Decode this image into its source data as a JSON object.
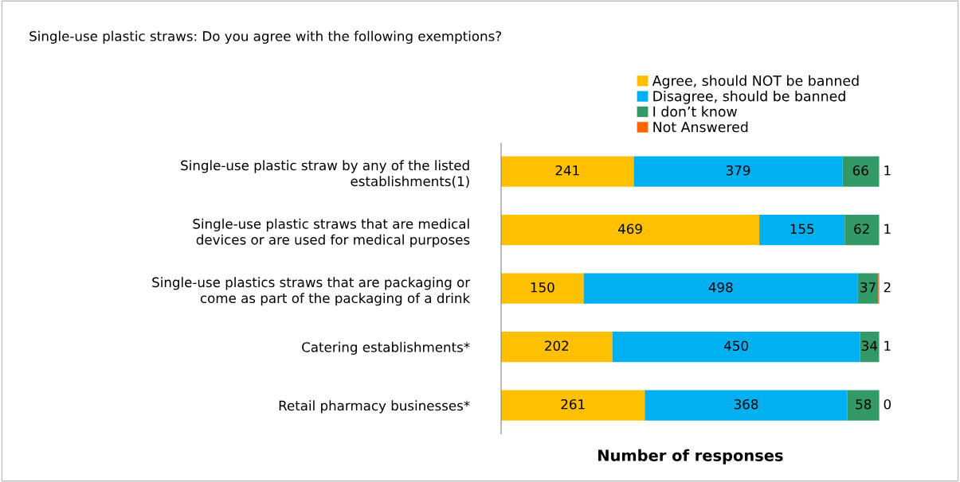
{
  "chart_data": {
    "type": "bar",
    "orientation": "horizontal",
    "stacked": true,
    "title": "Single-use plastic straws: Do you agree with the following exemptions?",
    "xlabel": "Number of responses",
    "categories": [
      "Single-use plastic straw by any of the listed\nestablishments(1)",
      "Single-use plastic straws that are medical\ndevices or are used for medical purposes",
      "Single-use plastics straws that are packaging or\ncome as part of the packaging of a drink",
      "Catering establishments*",
      "Retail pharmacy businesses*"
    ],
    "series": [
      {
        "name": "Agree, should NOT be banned",
        "color": "#ffc000",
        "values": [
          241,
          469,
          150,
          202,
          261
        ]
      },
      {
        "name": "Disagree, should be banned",
        "color": "#00b0f0",
        "values": [
          379,
          155,
          498,
          450,
          368
        ]
      },
      {
        "name": "I don’t know",
        "color": "#339966",
        "values": [
          66,
          62,
          37,
          34,
          58
        ]
      },
      {
        "name": "Not Answered",
        "color": "#ff6600",
        "values": [
          1,
          1,
          2,
          1,
          0
        ]
      }
    ],
    "data_labels": true,
    "legend": "top right",
    "tick_labels": "y",
    "grid": false
  }
}
